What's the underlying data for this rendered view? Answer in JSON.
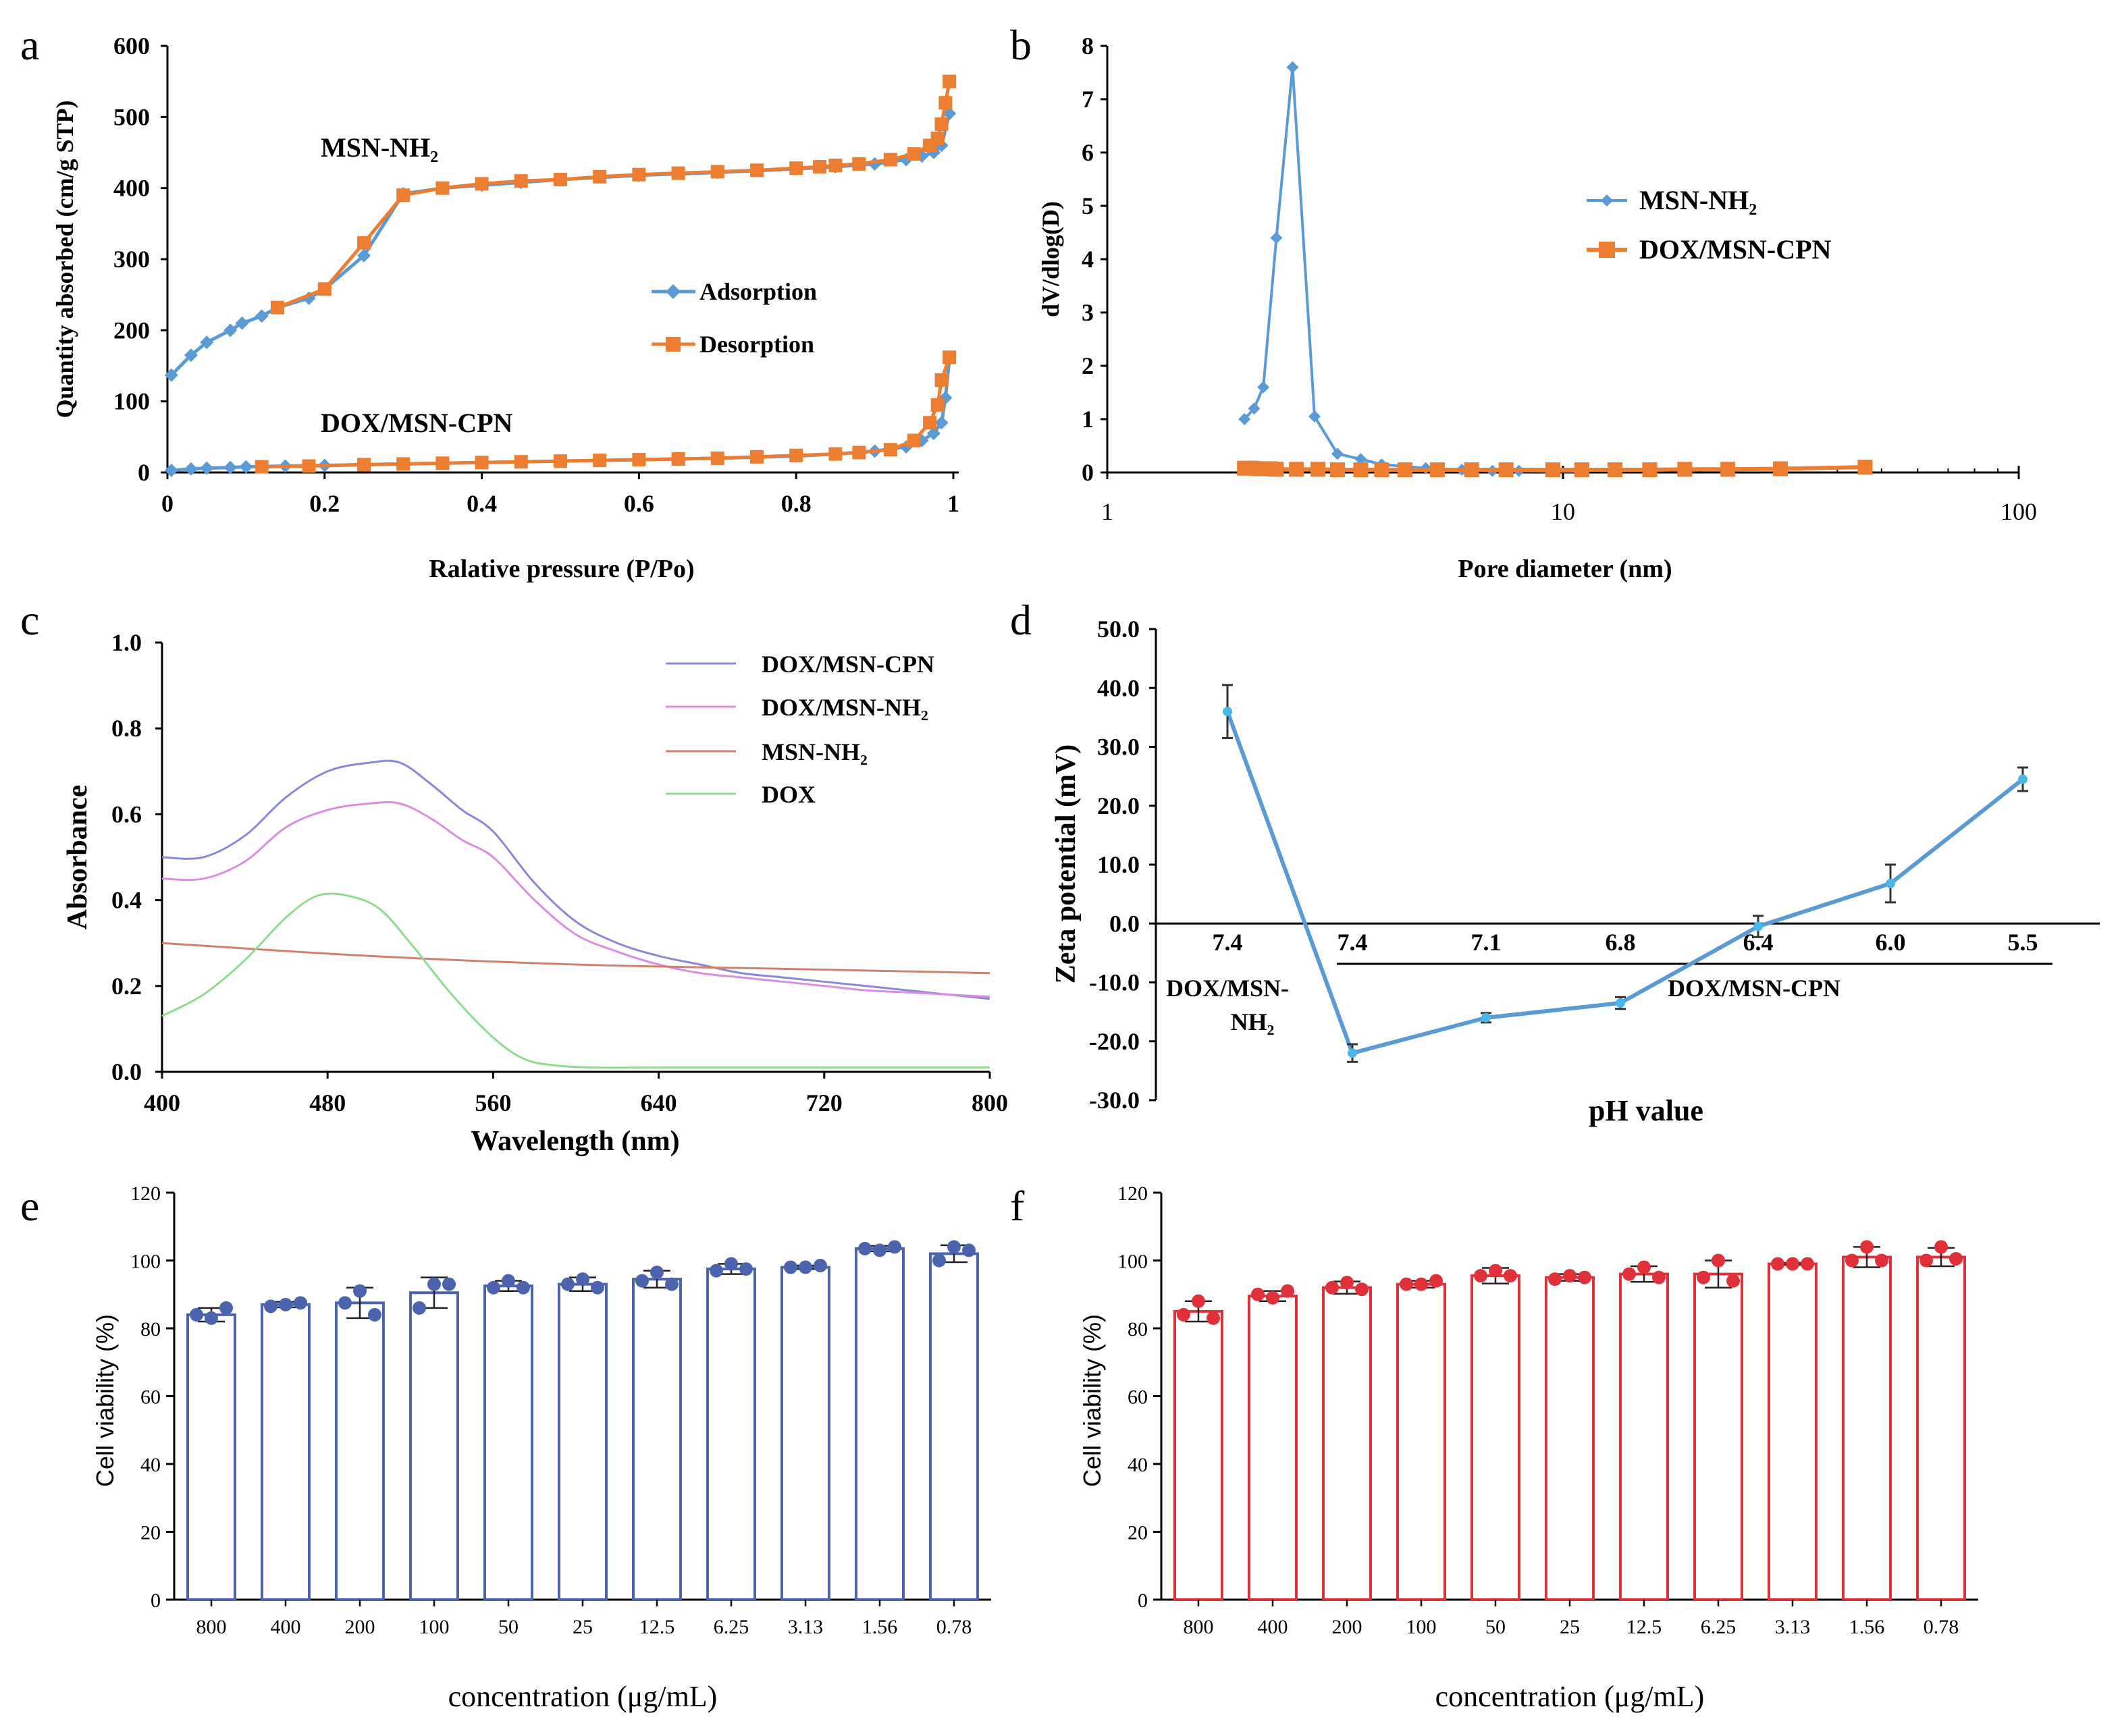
{
  "colors": {
    "blue": "#5b9bd5",
    "steel": "#4f8ac9",
    "orange": "#ed7d31",
    "purple": "#8a88d8",
    "magenta": "#d98ee0",
    "red_brown": "#d0806e",
    "green": "#8fdc8f",
    "navy_bar": "#4c64ae",
    "red_bar": "#e0303a",
    "axis": "#000000"
  },
  "chart_data": [
    {
      "panel": "a",
      "type": "line",
      "xlabel": "Ralative pressure (P/Po)",
      "ylabel": "Quantity absorbed (cm/g STP)",
      "xlim": [
        0,
        1
      ],
      "ylim": [
        0,
        600
      ],
      "xticks": [
        0,
        0.2,
        0.4,
        0.6,
        0.8,
        1
      ],
      "xtick_labels": [
        "0",
        "0.2",
        "0.4",
        "0.6",
        "0.8",
        "1"
      ],
      "yticks": [
        0,
        100,
        200,
        300,
        400,
        500,
        600
      ],
      "legend": [
        "Adsorption",
        "Desorption"
      ],
      "annotations": [
        "MSN-NH₂",
        "DOX/MSN-CPN"
      ],
      "series": [
        {
          "name": "MSN-NH₂ Adsorption",
          "color_key": "blue",
          "marker": "diamond",
          "x": [
            0.005,
            0.03,
            0.05,
            0.08,
            0.095,
            0.12,
            0.14,
            0.18,
            0.2,
            0.25,
            0.3,
            0.35,
            0.4,
            0.45,
            0.5,
            0.6,
            0.7,
            0.8,
            0.85,
            0.9,
            0.94,
            0.96,
            0.975,
            0.985,
            0.995
          ],
          "y": [
            137,
            165,
            183,
            200,
            210,
            220,
            232,
            245,
            258,
            305,
            392,
            400,
            404,
            408,
            412,
            418,
            422,
            427,
            430,
            434,
            440,
            445,
            450,
            460,
            505
          ]
        },
        {
          "name": "MSN-NH₂ Desorption",
          "color_key": "orange",
          "marker": "square",
          "x": [
            0.14,
            0.2,
            0.25,
            0.3,
            0.35,
            0.4,
            0.45,
            0.5,
            0.55,
            0.6,
            0.65,
            0.7,
            0.75,
            0.8,
            0.83,
            0.85,
            0.88,
            0.92,
            0.95,
            0.97,
            0.98,
            0.985,
            0.99,
            0.995
          ],
          "y": [
            232,
            258,
            323,
            390,
            400,
            406,
            410,
            412,
            416,
            419,
            421,
            423,
            425,
            428,
            430,
            432,
            434,
            440,
            448,
            460,
            470,
            490,
            520,
            550
          ]
        },
        {
          "name": "DOX/MSN-CPN Adsorption",
          "color_key": "blue",
          "marker": "diamond",
          "x": [
            0.005,
            0.03,
            0.05,
            0.08,
            0.1,
            0.15,
            0.2,
            0.25,
            0.3,
            0.4,
            0.5,
            0.6,
            0.7,
            0.8,
            0.85,
            0.9,
            0.94,
            0.96,
            0.975,
            0.985,
            0.99,
            0.995
          ],
          "y": [
            3,
            5,
            6,
            7,
            8,
            9,
            10,
            11,
            12,
            14,
            16,
            18,
            20,
            23,
            26,
            30,
            36,
            45,
            55,
            70,
            105,
            160
          ]
        },
        {
          "name": "DOX/MSN-CPN Desorption",
          "color_key": "orange",
          "marker": "square",
          "x": [
            0.12,
            0.18,
            0.25,
            0.3,
            0.35,
            0.4,
            0.45,
            0.5,
            0.55,
            0.6,
            0.65,
            0.7,
            0.75,
            0.8,
            0.85,
            0.88,
            0.92,
            0.95,
            0.97,
            0.98,
            0.985,
            0.995
          ],
          "y": [
            8,
            9,
            11,
            12,
            13,
            14,
            15,
            16,
            17,
            18,
            19,
            20,
            22,
            24,
            26,
            28,
            32,
            45,
            70,
            95,
            130,
            162
          ]
        }
      ]
    },
    {
      "panel": "b",
      "type": "line",
      "xscale": "log",
      "xlabel": "Pore diameter (nm)",
      "ylabel": "dV/dlog(D)",
      "xlim": [
        1,
        100
      ],
      "ylim": [
        0,
        8
      ],
      "xticks": [
        1,
        10,
        100
      ],
      "yticks": [
        0,
        1,
        2,
        3,
        4,
        5,
        6,
        7,
        8
      ],
      "legend": [
        "MSN-NH₂",
        "DOX/MSN-CPN"
      ],
      "series": [
        {
          "name": "MSN-NH₂",
          "color_key": "blue",
          "marker": "diamond",
          "x": [
            2.0,
            2.1,
            2.2,
            2.35,
            2.55,
            2.85,
            3.2,
            3.6,
            4.0,
            5.0,
            6.0,
            7.0,
            8.0,
            9.5,
            11
          ],
          "y": [
            1.0,
            1.2,
            1.6,
            4.4,
            7.6,
            1.05,
            0.35,
            0.25,
            0.15,
            0.08,
            0.05,
            0.03,
            0.03,
            0.02,
            0.02
          ]
        },
        {
          "name": "DOX/MSN-CPN",
          "color_key": "orange",
          "marker": "square",
          "x": [
            2.0,
            2.08,
            2.15,
            2.2,
            2.28,
            2.35,
            2.6,
            2.9,
            3.2,
            3.6,
            4.0,
            4.5,
            5.3,
            6.3,
            7.5,
            9.5,
            11,
            13,
            15.5,
            18.5,
            23,
            30,
            46
          ],
          "y": [
            0.08,
            0.08,
            0.07,
            0.07,
            0.07,
            0.06,
            0.06,
            0.06,
            0.05,
            0.05,
            0.05,
            0.05,
            0.05,
            0.05,
            0.05,
            0.05,
            0.05,
            0.05,
            0.05,
            0.06,
            0.06,
            0.07,
            0.1
          ]
        }
      ]
    },
    {
      "panel": "c",
      "type": "line",
      "xlabel": "Wavelength (nm)",
      "ylabel": "Absorbance",
      "xlim": [
        400,
        800
      ],
      "ylim": [
        0,
        1.0
      ],
      "xticks": [
        400,
        480,
        560,
        640,
        720,
        800
      ],
      "ytick_labels": [
        "0.0",
        "0.2",
        "0.4",
        "0.6",
        "0.8",
        "1.0"
      ],
      "legend": [
        "DOX/MSN-CPN",
        "DOX/MSN-NH₂",
        "MSN-NH₂",
        "DOX"
      ],
      "series": [
        {
          "name": "DOX/MSN-CPN",
          "color_key": "purple",
          "x": [
            400,
            420,
            440,
            460,
            480,
            500,
            515,
            530,
            545,
            560,
            580,
            600,
            620,
            640,
            660,
            680,
            700,
            720,
            740,
            760,
            780,
            800
          ],
          "y": [
            0.5,
            0.5,
            0.55,
            0.64,
            0.7,
            0.72,
            0.72,
            0.67,
            0.61,
            0.56,
            0.44,
            0.35,
            0.3,
            0.27,
            0.25,
            0.23,
            0.22,
            0.21,
            0.2,
            0.19,
            0.18,
            0.17
          ]
        },
        {
          "name": "DOX/MSN-NH₂",
          "color_key": "magenta",
          "x": [
            400,
            420,
            440,
            460,
            480,
            500,
            515,
            530,
            545,
            560,
            580,
            600,
            620,
            640,
            660,
            680,
            700,
            720,
            740,
            760,
            780,
            800
          ],
          "y": [
            0.45,
            0.45,
            0.49,
            0.57,
            0.61,
            0.625,
            0.625,
            0.59,
            0.54,
            0.5,
            0.4,
            0.32,
            0.28,
            0.25,
            0.23,
            0.22,
            0.21,
            0.2,
            0.19,
            0.185,
            0.18,
            0.175
          ]
        },
        {
          "name": "MSN-NH₂",
          "color_key": "red_brown",
          "x": [
            400,
            500,
            600,
            700,
            800
          ],
          "y": [
            0.3,
            0.27,
            0.25,
            0.24,
            0.23
          ]
        },
        {
          "name": "DOX",
          "color_key": "green",
          "x": [
            400,
            420,
            440,
            460,
            475,
            490,
            505,
            520,
            540,
            560,
            575,
            590,
            610,
            640,
            700,
            800
          ],
          "y": [
            0.13,
            0.18,
            0.26,
            0.36,
            0.41,
            0.41,
            0.38,
            0.3,
            0.18,
            0.08,
            0.03,
            0.015,
            0.01,
            0.01,
            0.01,
            0.01
          ]
        }
      ]
    },
    {
      "panel": "d",
      "type": "line",
      "xlabel": "pH value",
      "ylabel": "Zeta potential (mV)",
      "ylim": [
        -30,
        50
      ],
      "ytick_labels": [
        "-30.0",
        "-20.0",
        "-10.0",
        "0.0",
        "10.0",
        "20.0",
        "30.0",
        "40.0",
        "50.0"
      ],
      "categories": [
        "7.4",
        "7.4",
        "7.1",
        "6.8",
        "6.4",
        "6.0",
        "5.5"
      ],
      "group_labels": [
        "DOX/MSN-",
        "NH₂",
        "DOX/MSN-CPN"
      ],
      "values": [
        36.0,
        -22.0,
        -16.0,
        -13.5,
        -0.5,
        6.8,
        24.5
      ],
      "errors": [
        4.5,
        1.5,
        0.8,
        1.0,
        1.8,
        3.2,
        2.0
      ]
    },
    {
      "panel": "e",
      "type": "bar",
      "xlabel": "concentration (μg/mL)",
      "ylabel": "Cell viability (%)",
      "ylim": [
        0,
        120
      ],
      "yticks": [
        0,
        20,
        40,
        60,
        80,
        100,
        120
      ],
      "categories": [
        "800",
        "400",
        "200",
        "100",
        "50",
        "25",
        "12.5",
        "6.25",
        "3.13",
        "1.56",
        "0.78"
      ],
      "values": [
        84,
        87,
        87.5,
        90.5,
        92.5,
        93,
        94.5,
        97.5,
        98,
        103.5,
        102
      ],
      "errors": [
        2,
        0.8,
        4.5,
        4.5,
        1.5,
        2,
        2.5,
        1.5,
        0.5,
        0.8,
        2.5
      ],
      "points": [
        [
          83,
          86,
          84
        ],
        [
          87,
          87.5,
          86.5
        ],
        [
          91,
          84,
          87.5
        ],
        [
          93,
          93,
          86
        ],
        [
          94,
          92,
          92
        ],
        [
          94.5,
          92,
          93
        ],
        [
          96.5,
          93,
          94
        ],
        [
          99,
          97.5,
          97
        ],
        [
          98,
          98.5,
          98
        ],
        [
          103,
          104,
          103.5
        ],
        [
          104,
          103,
          100
        ]
      ]
    },
    {
      "panel": "f",
      "type": "bar",
      "xlabel": "concentration (μg/mL)",
      "ylabel": "Cell viability (%)",
      "ylim": [
        0,
        120
      ],
      "yticks": [
        0,
        20,
        40,
        60,
        80,
        100,
        120
      ],
      "categories": [
        "800",
        "400",
        "200",
        "100",
        "50",
        "25",
        "12.5",
        "6.25",
        "3.13",
        "1.56",
        "0.78"
      ],
      "values": [
        85,
        89.5,
        92,
        93,
        95.5,
        95,
        96,
        96,
        99,
        101,
        101
      ],
      "errors": [
        3,
        1.5,
        1.8,
        1,
        2.3,
        1,
        2.3,
        4,
        0.3,
        3,
        2.7
      ],
      "points": [
        [
          88,
          83,
          84
        ],
        [
          89,
          91,
          90
        ],
        [
          93.5,
          91.5,
          92
        ],
        [
          93,
          94,
          93
        ],
        [
          97,
          95.5,
          95.5
        ],
        [
          95.5,
          95,
          94.5
        ],
        [
          98,
          95,
          96
        ],
        [
          100,
          94,
          95
        ],
        [
          99,
          99,
          99
        ],
        [
          104,
          100,
          100
        ],
        [
          104,
          100.5,
          100
        ]
      ]
    }
  ],
  "panel_letters": [
    "a",
    "b",
    "c",
    "d",
    "e",
    "f"
  ]
}
